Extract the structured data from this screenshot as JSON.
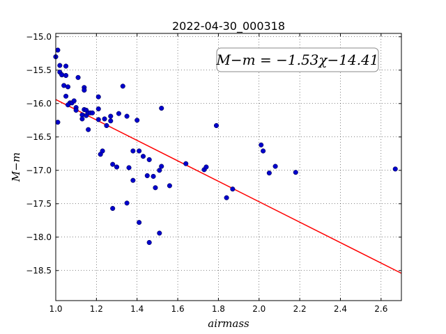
{
  "chart_data": {
    "type": "scatter",
    "title": "2022-04-30_000318",
    "xlabel": "airmass",
    "ylabel": "M−m",
    "xlim": [
      1.0,
      2.7
    ],
    "ylim": [
      -18.95,
      -14.95
    ],
    "yaxis_inverted": false,
    "grid": true,
    "grid_style": "dotted",
    "xticks": [
      1.0,
      1.2,
      1.4,
      1.6,
      1.8,
      2.0,
      2.2,
      2.4,
      2.6
    ],
    "xtick_labels": [
      "1.0",
      "1.2",
      "1.4",
      "1.6",
      "1.8",
      "2.0",
      "2.2",
      "2.4",
      "2.6"
    ],
    "yticks": [
      -15.0,
      -15.5,
      -16.0,
      -16.5,
      -17.0,
      -17.5,
      -18.0,
      -18.5
    ],
    "ytick_labels": [
      "−15.0",
      "−15.5",
      "−16.0",
      "−16.5",
      "−17.0",
      "−17.5",
      "−18.0",
      "−18.5"
    ],
    "annotation": "M−m = −1.53χ−14.41",
    "fit": {
      "slope": -1.53,
      "intercept": -14.41,
      "color": "#ff0000"
    },
    "point_color": "#0000cc",
    "x": [
      1.0,
      1.01,
      1.02,
      1.02,
      1.03,
      1.03,
      1.05,
      1.05,
      1.01,
      1.04,
      1.05,
      1.06,
      1.07,
      1.06,
      1.08,
      1.09,
      1.1,
      1.1,
      1.11,
      1.13,
      1.14,
      1.14,
      1.14,
      1.13,
      1.15,
      1.15,
      1.16,
      1.17,
      1.16,
      1.18,
      1.21,
      1.21,
      1.21,
      1.22,
      1.24,
      1.25,
      1.27,
      1.27,
      1.28,
      1.23,
      1.33,
      1.35,
      1.31,
      1.28,
      1.3,
      1.36,
      1.38,
      1.38,
      1.4,
      1.41,
      1.43,
      1.45,
      1.46,
      1.48,
      1.49,
      1.51,
      1.52,
      1.52,
      1.56,
      1.64,
      1.73,
      1.74,
      1.79,
      1.84,
      1.87,
      2.01,
      2.02,
      2.05,
      2.08,
      2.18,
      2.67,
      1.35,
      1.41,
      1.46,
      1.51
    ],
    "y": [
      -15.3,
      -15.2,
      -15.43,
      -15.53,
      -15.57,
      -15.57,
      -15.44,
      -15.58,
      -16.28,
      -15.73,
      -15.89,
      -15.75,
      -15.99,
      -16.02,
      -15.99,
      -15.96,
      -16.06,
      -16.1,
      -15.61,
      -16.17,
      -15.76,
      -15.8,
      -16.09,
      -16.23,
      -16.18,
      -16.1,
      -16.14,
      -16.14,
      -16.39,
      -16.14,
      -15.9,
      -16.08,
      -16.24,
      -16.76,
      -16.23,
      -16.33,
      -16.19,
      -16.26,
      -16.91,
      -16.71,
      -15.74,
      -16.19,
      -16.15,
      -17.57,
      -16.95,
      -16.96,
      -16.71,
      -17.15,
      -16.25,
      -16.71,
      -16.79,
      -17.08,
      -16.84,
      -17.09,
      -17.26,
      -17.0,
      -16.94,
      -16.07,
      -17.23,
      -16.9,
      -16.99,
      -16.95,
      -16.33,
      -17.41,
      -17.28,
      -16.62,
      -16.71,
      -17.04,
      -16.94,
      -17.03,
      -16.98,
      -17.49,
      -17.78,
      -18.08,
      -17.94
    ]
  }
}
